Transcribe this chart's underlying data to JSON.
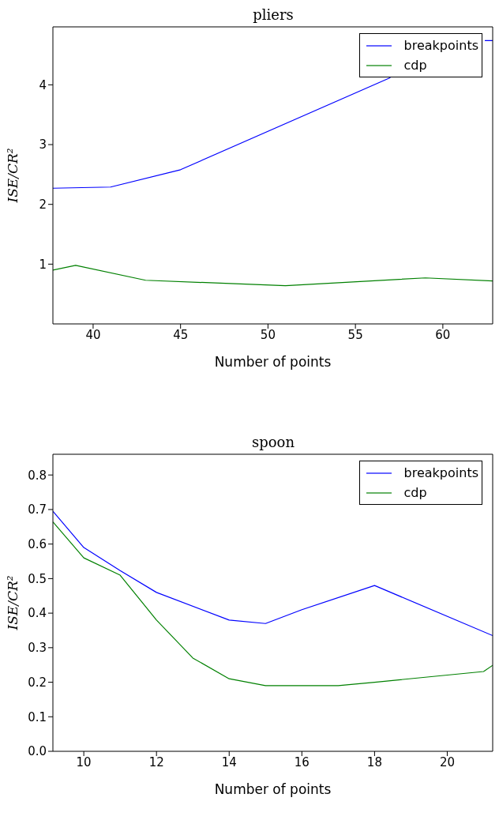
{
  "chart_data": [
    {
      "type": "line",
      "title": "pliers",
      "xlabel": "Number of points",
      "ylabel": "ISE/CR²",
      "xlim": [
        37.7,
        62.85
      ],
      "xticks": [
        40,
        45,
        50,
        55,
        60
      ],
      "ylim": [
        0,
        4.97
      ],
      "yticks": [
        1,
        2,
        3,
        4
      ],
      "legend": "top right",
      "grid": false,
      "series": [
        {
          "name": "breakpoints",
          "color": "#0000ff",
          "x": [
            37.7,
            41,
            45,
            57,
            60.5,
            62.4,
            62.85
          ],
          "values": [
            2.27,
            2.29,
            2.58,
            4.12,
            null,
            4.74,
            4.74
          ]
        },
        {
          "name": "cdp",
          "color": "#008000",
          "x": [
            37.7,
            39,
            43,
            51,
            59,
            62.85
          ],
          "values": [
            0.9,
            0.98,
            0.73,
            0.64,
            0.77,
            0.72
          ]
        }
      ]
    },
    {
      "type": "line",
      "title": "spoon",
      "xlabel": "Number of points",
      "ylabel": "ISE/CR²",
      "xlim": [
        9.15,
        21.25
      ],
      "xticks": [
        10,
        12,
        14,
        16,
        18,
        20
      ],
      "ylim": [
        0,
        0.86
      ],
      "yticks": [
        {
          "value": 0,
          "label": "0.0"
        },
        0.1,
        0.2,
        0.3,
        0.4,
        0.5,
        0.6,
        0.7,
        0.8
      ],
      "legend": "top right",
      "grid": false,
      "series": [
        {
          "name": "breakpoints",
          "color": "#0000ff",
          "x": [
            9.15,
            10,
            11,
            12,
            14,
            15,
            16,
            18,
            21.25
          ],
          "values": [
            0.695,
            0.59,
            0.523,
            0.46,
            0.38,
            0.37,
            0.41,
            0.48,
            0.335
          ]
        },
        {
          "name": "cdp",
          "color": "#008000",
          "x": [
            9.15,
            10,
            11,
            12,
            13,
            14,
            15,
            17,
            18,
            21,
            21.25
          ],
          "values": [
            0.664,
            0.56,
            0.51,
            0.38,
            0.27,
            0.21,
            0.19,
            0.19,
            0.2,
            0.231,
            0.249
          ]
        }
      ]
    }
  ]
}
